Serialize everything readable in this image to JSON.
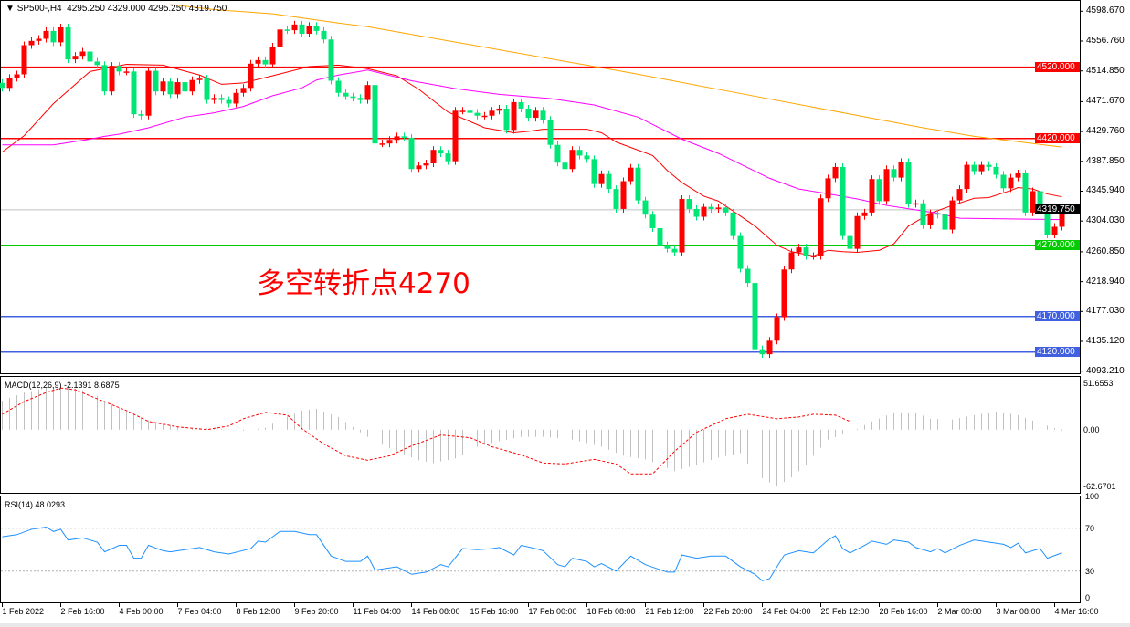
{
  "header": {
    "symbol": "SP500-,H4",
    "ohlc": "4295.250 4329.000 4295.250 4319.750"
  },
  "annotation": "多空转折点4270",
  "colors": {
    "up": "#ff0000",
    "down": "#00e676",
    "ma_fast": "#ff0000",
    "ma_mid": "#ff00ff",
    "ma_slow": "#ffa500",
    "macd_signal": "#ff0000",
    "macd_hist": "#c0c0c0",
    "rsi": "#1e90ff"
  },
  "chart_data": [
    {
      "type": "candlestick",
      "title": "SP500-,H4",
      "ylim": [
        4093.21,
        4598.67
      ],
      "y_ticks": [
        "4598.670",
        "4556.760",
        "4514.850",
        "4471.670",
        "4429.760",
        "4387.850",
        "4345.940",
        "4304.030",
        "4260.850",
        "4218.940",
        "4177.030",
        "4135.120",
        "4093.210"
      ],
      "first_open": 4498,
      "close": [
        4491,
        4505,
        4510,
        4551,
        4557,
        4560,
        4571,
        4555,
        4576,
        4531,
        4536,
        4542,
        4528,
        4523,
        4486,
        4522,
        4514,
        4514,
        4454,
        4452,
        4515,
        4486,
        4500,
        4482,
        4499,
        4486,
        4502,
        4504,
        4474,
        4477,
        4474,
        4469,
        4484,
        4491,
        4525,
        4530,
        4524,
        4549,
        4573,
        4572,
        4580,
        4567,
        4578,
        4571,
        4559,
        4501,
        4484,
        4479,
        4477,
        4474,
        4495,
        4413,
        4413,
        4418,
        4423,
        4421,
        4377,
        4382,
        4385,
        4404,
        4399,
        4388,
        4459,
        4459,
        4456,
        4452,
        4452,
        4459,
        4462,
        4432,
        4471,
        4462,
        4449,
        4459,
        4446,
        4411,
        4386,
        4377,
        4404,
        4396,
        4391,
        4356,
        4370,
        4349,
        4321,
        4360,
        4379,
        4333,
        4313,
        4294,
        4270,
        4265,
        4260,
        4335,
        4321,
        4310,
        4324,
        4321,
        4323,
        4316,
        4283,
        4237,
        4217,
        4124,
        4117,
        4136,
        4169,
        4236,
        4260,
        4267,
        4255,
        4255,
        4336,
        4364,
        4380,
        4283,
        4265,
        4311,
        4316,
        4363,
        4332,
        4377,
        4365,
        4387,
        4328,
        4329,
        4298,
        4315,
        4313,
        4292,
        4333,
        4349,
        4383,
        4374,
        4383,
        4380,
        4369,
        4350,
        4365,
        4371,
        4316,
        4346,
        4323,
        4285,
        4296,
        4319.75
      ],
      "moving_averages": [
        {
          "color": "#ff0000",
          "points": [
            [
              0,
              4401
            ],
            [
              3,
              4424
            ],
            [
              7,
              4469
            ],
            [
              12,
              4514
            ],
            [
              17,
              4524
            ],
            [
              22,
              4523
            ],
            [
              27,
              4509
            ],
            [
              30,
              4496
            ],
            [
              33,
              4498
            ],
            [
              37,
              4508
            ],
            [
              42,
              4521
            ],
            [
              46,
              4523
            ],
            [
              50,
              4518
            ],
            [
              54,
              4508
            ],
            [
              57,
              4489
            ],
            [
              61,
              4457
            ],
            [
              66,
              4435
            ],
            [
              70,
              4428
            ],
            [
              72,
              4430
            ],
            [
              74,
              4433
            ],
            [
              80,
              4433
            ],
            [
              82,
              4428
            ],
            [
              84,
              4415
            ],
            [
              89,
              4396
            ],
            [
              91,
              4375
            ],
            [
              93,
              4358
            ],
            [
              96,
              4339
            ],
            [
              98,
              4332
            ],
            [
              103,
              4297
            ],
            [
              106,
              4270
            ],
            [
              108,
              4261
            ],
            [
              111,
              4255
            ],
            [
              113,
              4263
            ],
            [
              115,
              4261
            ],
            [
              117,
              4260
            ],
            [
              120,
              4263
            ],
            [
              122,
              4272
            ],
            [
              124,
              4297
            ],
            [
              127,
              4315
            ],
            [
              130,
              4326
            ],
            [
              133,
              4336
            ],
            [
              135,
              4337
            ],
            [
              138,
              4347
            ],
            [
              139,
              4351
            ],
            [
              141,
              4349
            ],
            [
              143,
              4342
            ],
            [
              145,
              4338
            ]
          ]
        },
        {
          "color": "#ff00ff",
          "points": [
            [
              0,
              4411
            ],
            [
              7,
              4411
            ],
            [
              12,
              4419
            ],
            [
              14,
              4423
            ],
            [
              16,
              4426
            ],
            [
              20,
              4435
            ],
            [
              25,
              4450
            ],
            [
              29,
              4456
            ],
            [
              33,
              4465
            ],
            [
              37,
              4480
            ],
            [
              41,
              4491
            ],
            [
              43,
              4502
            ],
            [
              46,
              4509
            ],
            [
              50,
              4516
            ],
            [
              56,
              4501
            ],
            [
              62,
              4490
            ],
            [
              68,
              4482
            ],
            [
              75,
              4476
            ],
            [
              81,
              4467
            ],
            [
              87,
              4450
            ],
            [
              93,
              4419
            ],
            [
              98,
              4399
            ],
            [
              105,
              4364
            ],
            [
              109,
              4349
            ],
            [
              112,
              4344
            ],
            [
              117,
              4335
            ],
            [
              121,
              4326
            ],
            [
              128,
              4315
            ],
            [
              131,
              4308
            ],
            [
              138,
              4307
            ],
            [
              145,
              4306
            ]
          ]
        },
        {
          "color": "#ffa500",
          "points": [
            [
              23,
              4608
            ],
            [
              29,
              4601
            ],
            [
              37,
              4595
            ],
            [
              46,
              4582
            ],
            [
              50,
              4577
            ],
            [
              86,
              4512
            ],
            [
              99,
              4487
            ],
            [
              126,
              4435
            ],
            [
              133,
              4423
            ],
            [
              145,
              4408
            ]
          ]
        }
      ],
      "levels": [
        {
          "value": "4520.000",
          "color": "#ff0000"
        },
        {
          "value": "4420.000",
          "color": "#ff0000"
        },
        {
          "value": "4270.000",
          "color": "#00cc00"
        },
        {
          "value": "4170.000",
          "color": "#4060e0"
        },
        {
          "value": "4120.000",
          "color": "#4060e0"
        }
      ],
      "current_price": {
        "value": "4319.750",
        "color": "#000000"
      }
    },
    {
      "type": "macd",
      "label": "MACD(12,26,9) -2.1391 8.6875",
      "y_ticks": [
        "51.6553",
        "0.00",
        "-62.6701"
      ],
      "ylim": [
        -62.6701,
        51.6553
      ],
      "histogram": [
        [
          0,
          32
        ],
        [
          3,
          41
        ],
        [
          6,
          46
        ],
        [
          9,
          47
        ],
        [
          12,
          42
        ],
        [
          15,
          27
        ],
        [
          18,
          17
        ],
        [
          21,
          7
        ],
        [
          25,
          2
        ],
        [
          30,
          1
        ],
        [
          33,
          -1
        ],
        [
          36,
          2
        ],
        [
          38,
          11
        ],
        [
          41,
          21
        ],
        [
          43,
          23
        ],
        [
          46,
          14
        ],
        [
          49,
          -3
        ],
        [
          51,
          -13
        ],
        [
          54,
          -24
        ],
        [
          57,
          -34
        ],
        [
          59,
          -37
        ],
        [
          62,
          -32
        ],
        [
          65,
          -19
        ],
        [
          68,
          -13
        ],
        [
          71,
          -8
        ],
        [
          74,
          -8
        ],
        [
          78,
          -11
        ],
        [
          82,
          -19
        ],
        [
          85,
          -29
        ],
        [
          88,
          -33
        ],
        [
          90,
          -39
        ],
        [
          92,
          -46
        ],
        [
          95,
          -39
        ],
        [
          98,
          -31
        ],
        [
          101,
          -26
        ],
        [
          103,
          -49
        ],
        [
          106,
          -63
        ],
        [
          108,
          -53
        ],
        [
          110,
          -39
        ],
        [
          111,
          -29
        ],
        [
          113,
          -11
        ],
        [
          116,
          -3
        ],
        [
          119,
          9
        ],
        [
          122,
          19
        ],
        [
          125,
          19
        ],
        [
          127,
          12
        ],
        [
          130,
          11
        ],
        [
          133,
          16
        ],
        [
          136,
          20
        ],
        [
          139,
          16
        ],
        [
          142,
          7
        ],
        [
          145,
          -1
        ]
      ],
      "signal": [
        [
          0,
          17
        ],
        [
          3,
          31
        ],
        [
          6,
          41
        ],
        [
          8,
          46
        ],
        [
          10,
          44
        ],
        [
          13,
          34
        ],
        [
          17,
          21
        ],
        [
          20,
          9
        ],
        [
          24,
          3
        ],
        [
          28,
          0
        ],
        [
          31,
          4
        ],
        [
          33,
          12
        ],
        [
          36,
          19
        ],
        [
          39,
          16
        ],
        [
          41,
          1
        ],
        [
          44,
          -16
        ],
        [
          47,
          -29
        ],
        [
          50,
          -34
        ],
        [
          53,
          -29
        ],
        [
          56,
          -18
        ],
        [
          60,
          -6
        ],
        [
          64,
          -9
        ],
        [
          67,
          -19
        ],
        [
          71,
          -28
        ],
        [
          74,
          -37
        ],
        [
          77,
          -38
        ],
        [
          81,
          -33
        ],
        [
          84,
          -38
        ],
        [
          86,
          -49
        ],
        [
          89,
          -49
        ],
        [
          92,
          -24
        ],
        [
          95,
          -3
        ],
        [
          99,
          12
        ],
        [
          102,
          17
        ],
        [
          106,
          12
        ],
        [
          109,
          14
        ],
        [
          111,
          17
        ],
        [
          114,
          16
        ],
        [
          116,
          9
        ]
      ]
    },
    {
      "type": "line",
      "label": "RSI(14) 48.0293",
      "y_ticks": [
        "100",
        "70",
        "30",
        "0"
      ],
      "ylim": [
        0,
        100
      ],
      "levels": [
        70,
        30
      ],
      "values": [
        [
          0,
          62
        ],
        [
          2,
          64
        ],
        [
          4,
          69
        ],
        [
          6,
          71
        ],
        [
          7,
          67
        ],
        [
          8,
          69
        ],
        [
          9,
          59
        ],
        [
          11,
          61
        ],
        [
          13,
          57
        ],
        [
          14,
          48
        ],
        [
          16,
          54
        ],
        [
          17,
          54
        ],
        [
          18,
          42
        ],
        [
          19,
          42
        ],
        [
          20,
          54
        ],
        [
          22,
          49
        ],
        [
          23,
          48
        ],
        [
          25,
          50
        ],
        [
          27,
          52
        ],
        [
          29,
          48
        ],
        [
          31,
          46
        ],
        [
          34,
          51
        ],
        [
          35,
          58
        ],
        [
          36,
          57
        ],
        [
          38,
          67
        ],
        [
          40,
          67
        ],
        [
          42,
          64
        ],
        [
          43,
          64
        ],
        [
          45,
          44
        ],
        [
          47,
          39
        ],
        [
          49,
          39
        ],
        [
          50,
          44
        ],
        [
          51,
          31
        ],
        [
          54,
          34
        ],
        [
          56,
          27
        ],
        [
          58,
          29
        ],
        [
          60,
          36
        ],
        [
          61,
          34
        ],
        [
          63,
          51
        ],
        [
          65,
          50
        ],
        [
          67,
          51
        ],
        [
          68,
          52
        ],
        [
          70,
          45
        ],
        [
          71,
          54
        ],
        [
          73,
          51
        ],
        [
          74,
          49
        ],
        [
          76,
          36
        ],
        [
          77,
          34
        ],
        [
          78,
          42
        ],
        [
          80,
          39
        ],
        [
          81,
          34
        ],
        [
          82,
          37
        ],
        [
          84,
          30
        ],
        [
          86,
          44
        ],
        [
          88,
          36
        ],
        [
          91,
          29
        ],
        [
          92,
          29
        ],
        [
          93,
          45
        ],
        [
          95,
          42
        ],
        [
          97,
          44
        ],
        [
          99,
          44
        ],
        [
          101,
          34
        ],
        [
          103,
          27
        ],
        [
          104,
          21
        ],
        [
          105,
          23
        ],
        [
          107,
          45
        ],
        [
          109,
          49
        ],
        [
          111,
          47
        ],
        [
          113,
          59
        ],
        [
          114,
          63
        ],
        [
          115,
          51
        ],
        [
          116,
          47
        ],
        [
          118,
          54
        ],
        [
          119,
          58
        ],
        [
          121,
          55
        ],
        [
          122,
          59
        ],
        [
          124,
          57
        ],
        [
          125,
          52
        ],
        [
          127,
          48
        ],
        [
          128,
          51
        ],
        [
          129,
          47
        ],
        [
          131,
          54
        ],
        [
          133,
          59
        ],
        [
          135,
          57
        ],
        [
          137,
          55
        ],
        [
          138,
          52
        ],
        [
          139,
          56
        ],
        [
          140,
          47
        ],
        [
          142,
          51
        ],
        [
          143,
          42
        ],
        [
          145,
          47
        ]
      ]
    }
  ],
  "time_axis": [
    "1 Feb 2022",
    "2 Feb 16:00",
    "4 Feb 00:00",
    "7 Feb 04:00",
    "8 Feb 12:00",
    "9 Feb 20:00",
    "11 Feb 04:00",
    "14 Feb 08:00",
    "15 Feb 16:00",
    "17 Feb 00:00",
    "18 Feb 08:00",
    "21 Feb 12:00",
    "22 Feb 20:00",
    "24 Feb 04:00",
    "25 Feb 12:00",
    "28 Feb 16:00",
    "2 Mar 00:00",
    "3 Mar 08:00",
    "4 Mar 16:00"
  ]
}
